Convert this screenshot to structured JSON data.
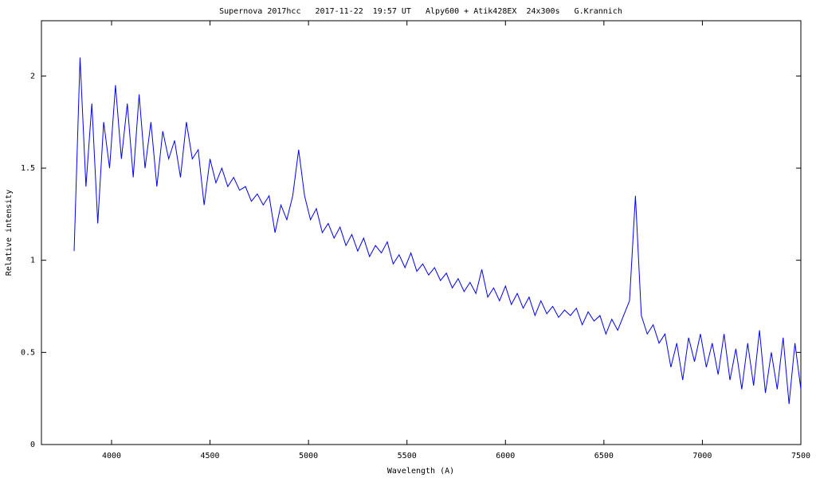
{
  "chart_data": {
    "type": "line",
    "title": "Supernova 2017hcc   2017-11-22  19:57 UT   Alpy600 + Atik428EX  24x300s   G.Krannich",
    "x_label": "Wavelength (A)",
    "y_label": "Relative intensity",
    "x": [
      3810,
      3840,
      3870,
      3900,
      3930,
      3960,
      3990,
      4020,
      4050,
      4080,
      4110,
      4140,
      4170,
      4200,
      4230,
      4260,
      4290,
      4320,
      4350,
      4380,
      4410,
      4440,
      4470,
      4500,
      4530,
      4560,
      4590,
      4620,
      4650,
      4680,
      4710,
      4740,
      4770,
      4800,
      4830,
      4860,
      4890,
      4920,
      4950,
      4980,
      5010,
      5040,
      5070,
      5100,
      5130,
      5160,
      5190,
      5220,
      5250,
      5280,
      5310,
      5340,
      5370,
      5400,
      5430,
      5460,
      5490,
      5520,
      5550,
      5580,
      5610,
      5640,
      5670,
      5700,
      5730,
      5760,
      5790,
      5820,
      5850,
      5880,
      5910,
      5940,
      5970,
      6000,
      6030,
      6060,
      6090,
      6120,
      6150,
      6180,
      6210,
      6240,
      6270,
      6300,
      6330,
      6360,
      6390,
      6420,
      6450,
      6480,
      6510,
      6540,
      6570,
      6600,
      6630,
      6660,
      6690,
      6720,
      6750,
      6780,
      6810,
      6840,
      6870,
      6900,
      6930,
      6960,
      6990,
      7020,
      7050,
      7080,
      7110,
      7140,
      7170,
      7200,
      7230,
      7260,
      7290,
      7320,
      7350,
      7380,
      7410,
      7440,
      7470,
      7500
    ],
    "series": [
      {
        "name": "spectrum",
        "color": "#0000ff",
        "values": [
          1.05,
          2.1,
          1.4,
          1.85,
          1.2,
          1.75,
          1.5,
          1.95,
          1.55,
          1.85,
          1.45,
          1.9,
          1.5,
          1.75,
          1.4,
          1.7,
          1.55,
          1.65,
          1.45,
          1.75,
          1.55,
          1.6,
          1.3,
          1.55,
          1.42,
          1.5,
          1.4,
          1.45,
          1.38,
          1.4,
          1.32,
          1.36,
          1.3,
          1.35,
          1.15,
          1.3,
          1.22,
          1.35,
          1.6,
          1.35,
          1.22,
          1.28,
          1.15,
          1.2,
          1.12,
          1.18,
          1.08,
          1.14,
          1.05,
          1.12,
          1.02,
          1.08,
          1.04,
          1.1,
          0.98,
          1.03,
          0.96,
          1.04,
          0.94,
          0.98,
          0.92,
          0.96,
          0.89,
          0.93,
          0.85,
          0.9,
          0.83,
          0.88,
          0.82,
          0.95,
          0.8,
          0.85,
          0.78,
          0.86,
          0.76,
          0.82,
          0.74,
          0.8,
          0.7,
          0.78,
          0.71,
          0.75,
          0.69,
          0.73,
          0.7,
          0.74,
          0.65,
          0.72,
          0.67,
          0.7,
          0.6,
          0.68,
          0.62,
          0.7,
          0.78,
          1.35,
          0.7,
          0.6,
          0.65,
          0.55,
          0.6,
          0.42,
          0.55,
          0.35,
          0.58,
          0.45,
          0.6,
          0.42,
          0.55,
          0.38,
          0.6,
          0.35,
          0.52,
          0.3,
          0.55,
          0.32,
          0.62,
          0.28,
          0.5,
          0.3,
          0.58,
          0.22,
          0.55,
          0.3
        ]
      }
    ],
    "xlim": [
      3644,
      7500
    ],
    "ylim": [
      0,
      2.3
    ],
    "xticks": [
      4000,
      4500,
      5000,
      5500,
      6000,
      6500,
      7000,
      7500
    ],
    "yticks": [
      0,
      0.5,
      1,
      1.5,
      2
    ]
  }
}
